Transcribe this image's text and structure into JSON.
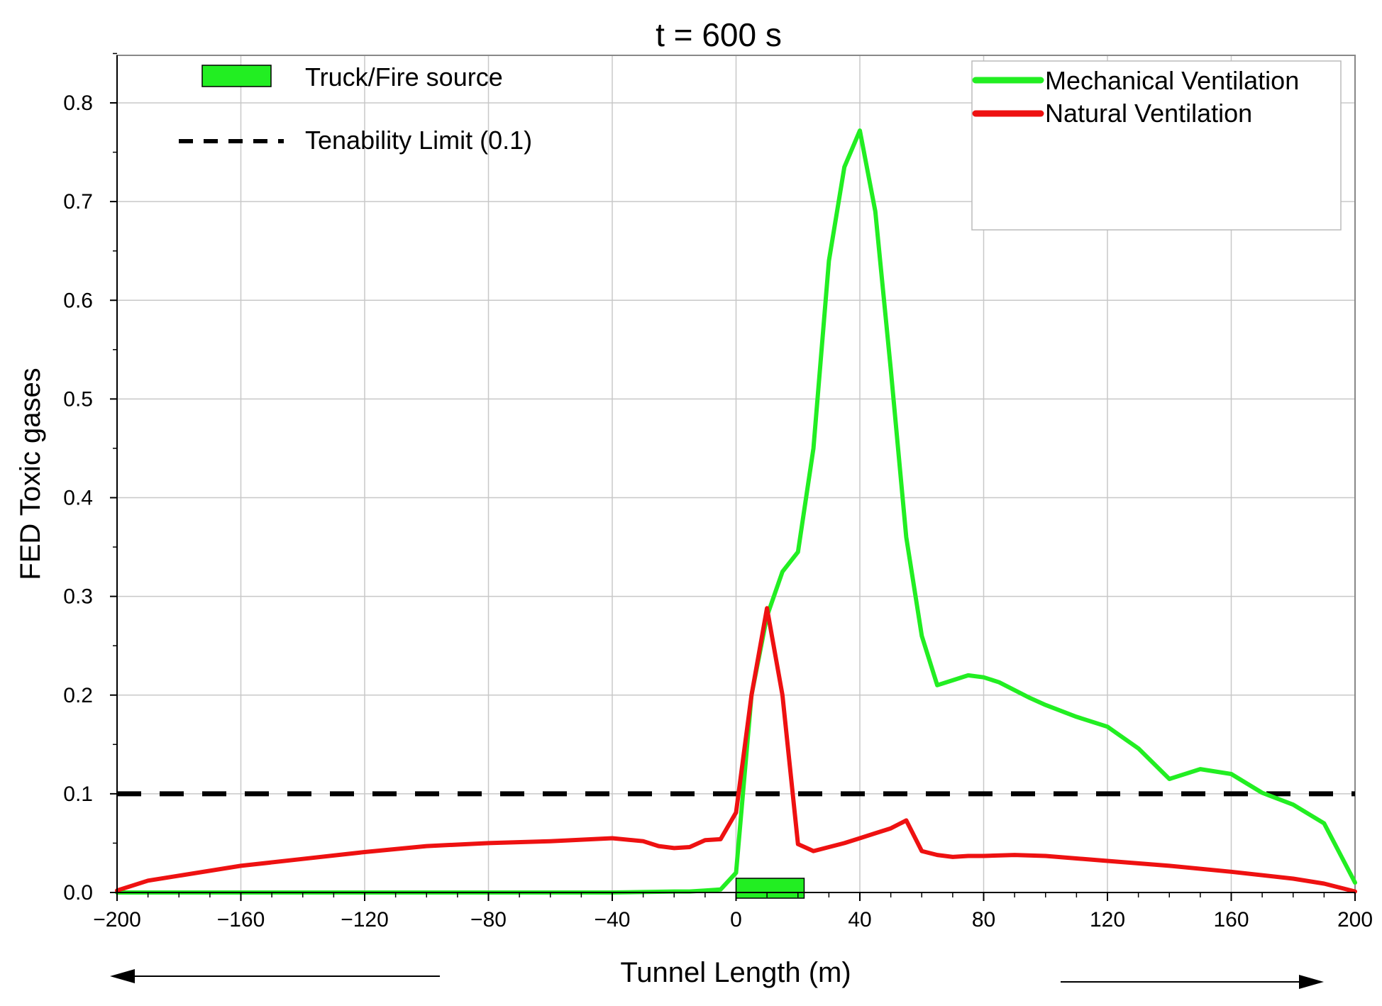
{
  "chart_data": {
    "type": "line",
    "title": "t = 600 s",
    "xlabel": "Tunnel Length (m)",
    "ylabel": "FED Toxic gases",
    "xlim": [
      -200,
      200
    ],
    "ylim": [
      0,
      0.85
    ],
    "x_ticks": [
      -200,
      -160,
      -120,
      -80,
      -40,
      0,
      40,
      80,
      120,
      160,
      200
    ],
    "x_tick_labels": [
      "−200",
      "−160",
      "−120",
      "−80",
      "−40",
      "0",
      "40",
      "80",
      "120",
      "160",
      "200"
    ],
    "y_ticks": [
      0.0,
      0.1,
      0.2,
      0.3,
      0.4,
      0.5,
      0.6,
      0.7,
      0.8
    ],
    "y_tick_labels": [
      "0.0",
      "0.1",
      "0.2",
      "0.3",
      "0.4",
      "0.5",
      "0.6",
      "0.7",
      "0.8"
    ],
    "grid": true,
    "series": [
      {
        "name": "Mechanical Ventilation",
        "color": "#22ee22",
        "x": [
          -200,
          -190,
          -180,
          -160,
          -140,
          -120,
          -100,
          -80,
          -60,
          -40,
          -20,
          -15,
          -10,
          -5,
          0,
          5,
          10,
          15,
          20,
          25,
          30,
          35,
          40,
          45,
          50,
          55,
          60,
          65,
          70,
          75,
          80,
          85,
          90,
          95,
          100,
          110,
          120,
          130,
          140,
          150,
          160,
          170,
          180,
          190,
          200
        ],
        "y": [
          0.0,
          0.0,
          0.0,
          0.0,
          0.0,
          0.0,
          0.0,
          0.0,
          0.0,
          0.0,
          0.001,
          0.001,
          0.002,
          0.003,
          0.02,
          0.2,
          0.28,
          0.325,
          0.345,
          0.45,
          0.64,
          0.735,
          0.772,
          0.69,
          0.53,
          0.36,
          0.26,
          0.21,
          0.215,
          0.22,
          0.218,
          0.213,
          0.205,
          0.197,
          0.19,
          0.178,
          0.168,
          0.146,
          0.115,
          0.125,
          0.12,
          0.101,
          0.089,
          0.07,
          0.01
        ]
      },
      {
        "name": "Natural Ventilation",
        "color": "#ee1111",
        "x": [
          -200,
          -190,
          -180,
          -160,
          -140,
          -120,
          -100,
          -80,
          -60,
          -40,
          -30,
          -25,
          -20,
          -15,
          -10,
          -5,
          0,
          5,
          10,
          15,
          20,
          25,
          30,
          35,
          40,
          45,
          50,
          55,
          60,
          65,
          70,
          75,
          80,
          90,
          100,
          120,
          140,
          160,
          180,
          190,
          200
        ],
        "y": [
          0.002,
          0.012,
          0.017,
          0.027,
          0.034,
          0.041,
          0.047,
          0.05,
          0.052,
          0.055,
          0.052,
          0.047,
          0.045,
          0.046,
          0.053,
          0.054,
          0.081,
          0.2,
          0.288,
          0.2,
          0.049,
          0.042,
          0.046,
          0.05,
          0.055,
          0.06,
          0.065,
          0.073,
          0.042,
          0.038,
          0.036,
          0.037,
          0.037,
          0.038,
          0.037,
          0.032,
          0.027,
          0.021,
          0.014,
          0.009,
          0.001
        ]
      }
    ],
    "reference_lines": [
      {
        "label": "Tenability Limit (0.1)",
        "y": 0.1,
        "color": "#000000",
        "style": "dashed"
      }
    ],
    "fire_source": {
      "label": "Truck/Fire source",
      "x_start": 0,
      "x_end": 22,
      "color": "#22ee22"
    },
    "legend": {
      "left_entries": [
        "Truck/Fire source",
        "Tenability Limit (0.1)"
      ],
      "right_entries": [
        "Mechanical Ventilation",
        "Natural Ventilation"
      ],
      "placement": "top-right"
    },
    "direction_arrows": [
      "left",
      "right"
    ]
  }
}
